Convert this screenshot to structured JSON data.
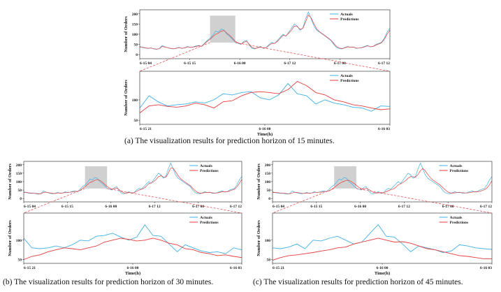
{
  "colors": {
    "actual": "#3fb0e6",
    "prediction": "#e63b3b",
    "highlight": "#c8c8c8",
    "connector": "#e63b3b",
    "axis": "#222222"
  },
  "legend": {
    "actual": "Actuals",
    "prediction": "Predictions"
  },
  "captions": {
    "a": "(a)  The visualization results for prediction horizon of 15 minutes.",
    "b": "(b) The visualization results for prediction horizon of 30 minutes.",
    "c": "(c) The visualization results for prediction horizon of 45 minutes."
  },
  "chart_data": [
    {
      "id": "a-overview",
      "type": "line",
      "ylabel": "Number of Orders",
      "xlabel": "",
      "x_ticks": [
        "6-15 04",
        "6-15 15",
        "6-16 00",
        "6-17 12",
        "6-17 00",
        "6-17 12"
      ],
      "y_ticks": [
        0,
        50,
        100,
        150,
        200
      ],
      "ylim": [
        -20,
        220
      ],
      "highlight_range": [
        25,
        34
      ],
      "series": [
        {
          "name": "Actuals",
          "values": [
            40,
            35,
            32,
            30,
            33,
            28,
            26,
            30,
            45,
            38,
            34,
            30,
            28,
            32,
            36,
            30,
            34,
            40,
            35,
            38,
            42,
            45,
            40,
            55,
            70,
            80,
            95,
            115,
            110,
            125,
            120,
            100,
            90,
            75,
            60,
            55,
            50,
            65,
            70,
            45,
            30,
            28,
            35,
            40,
            30,
            35,
            50,
            60,
            55,
            70,
            85,
            100,
            90,
            110,
            130,
            150,
            140,
            120,
            130,
            175,
            210,
            175,
            140,
            120,
            110,
            100,
            90,
            80,
            70,
            50,
            35,
            30,
            28,
            35,
            40,
            35,
            38,
            30,
            32,
            35,
            40,
            45,
            38,
            40,
            50,
            55,
            60,
            80,
            110,
            130
          ]
        },
        {
          "name": "Predictions",
          "values": [
            38,
            36,
            33,
            31,
            32,
            29,
            27,
            29,
            40,
            37,
            34,
            31,
            29,
            31,
            34,
            31,
            33,
            38,
            36,
            37,
            40,
            43,
            41,
            52,
            65,
            75,
            88,
            100,
            105,
            115,
            118,
            105,
            95,
            80,
            65,
            58,
            52,
            60,
            66,
            50,
            35,
            30,
            33,
            38,
            32,
            34,
            45,
            55,
            55,
            65,
            80,
            95,
            92,
            105,
            120,
            140,
            138,
            125,
            128,
            160,
            195,
            180,
            150,
            125,
            112,
            102,
            92,
            82,
            72,
            55,
            40,
            32,
            30,
            33,
            38,
            36,
            37,
            32,
            32,
            34,
            38,
            43,
            39,
            40,
            47,
            52,
            58,
            75,
            100,
            120
          ]
        }
      ]
    },
    {
      "id": "a-zoom",
      "type": "line",
      "ylabel": "Number of Orders",
      "xlabel": "Time(h)",
      "x_ticks": [
        "6-15 21",
        "6-16 00",
        "6-16 03"
      ],
      "y_ticks": [
        50,
        100
      ],
      "ylim": [
        40,
        170
      ],
      "series": [
        {
          "name": "Actuals",
          "values": [
            80,
            110,
            95,
            85,
            88,
            90,
            95,
            92,
            100,
            115,
            112,
            118,
            120,
            105,
            100,
            112,
            140,
            115,
            110,
            90,
            100,
            92,
            88,
            82,
            80,
            72,
            85,
            84
          ]
        },
        {
          "name": "Predictions",
          "values": [
            68,
            85,
            88,
            84,
            82,
            85,
            92,
            88,
            80,
            95,
            98,
            110,
            118,
            120,
            118,
            115,
            125,
            145,
            135,
            118,
            112,
            100,
            95,
            88,
            85,
            80,
            76,
            78
          ]
        }
      ]
    },
    {
      "id": "b-overview",
      "type": "line",
      "ylabel": "Number of Orders",
      "xlabel": "",
      "x_ticks": [
        "6-15 04",
        "6-15 15",
        "6-16 00",
        "6-17 12",
        "6-17 00",
        "6-17 12"
      ],
      "y_ticks": [
        0,
        50,
        100,
        150,
        200
      ],
      "ylim": [
        -20,
        220
      ],
      "highlight_range": [
        25,
        34
      ],
      "series": [
        {
          "name": "Actuals",
          "values": [
            40,
            35,
            32,
            30,
            33,
            28,
            26,
            30,
            45,
            38,
            34,
            30,
            28,
            32,
            36,
            30,
            34,
            40,
            35,
            38,
            42,
            45,
            40,
            55,
            70,
            80,
            95,
            115,
            110,
            125,
            120,
            100,
            90,
            75,
            60,
            55,
            50,
            65,
            70,
            45,
            30,
            28,
            35,
            40,
            30,
            35,
            50,
            60,
            55,
            70,
            85,
            100,
            90,
            110,
            130,
            150,
            140,
            120,
            130,
            175,
            210,
            175,
            140,
            120,
            110,
            100,
            90,
            80,
            70,
            50,
            35,
            30,
            28,
            35,
            40,
            35,
            38,
            30,
            32,
            35,
            40,
            45,
            38,
            40,
            50,
            55,
            60,
            80,
            110,
            130
          ]
        },
        {
          "name": "Predictions",
          "values": [
            36,
            37,
            34,
            32,
            31,
            30,
            28,
            28,
            36,
            38,
            35,
            32,
            30,
            30,
            33,
            32,
            33,
            36,
            37,
            37,
            39,
            42,
            42,
            48,
            60,
            70,
            82,
            95,
            100,
            108,
            112,
            108,
            98,
            85,
            72,
            62,
            55,
            58,
            62,
            52,
            40,
            33,
            32,
            36,
            34,
            34,
            42,
            50,
            54,
            60,
            72,
            88,
            92,
            100,
            112,
            130,
            135,
            128,
            126,
            150,
            180,
            180,
            158,
            135,
            118,
            106,
            96,
            86,
            76,
            60,
            46,
            36,
            32,
            32,
            36,
            36,
            36,
            34,
            32,
            33,
            36,
            40,
            40,
            40,
            44,
            50,
            55,
            68,
            90,
            112
          ]
        }
      ]
    },
    {
      "id": "b-zoom",
      "type": "line",
      "ylabel": "Number of Orders",
      "xlabel": "Time(h)",
      "x_ticks": [
        "6-15 21",
        "6-16 00",
        "6-16 03"
      ],
      "y_ticks": [
        50,
        100
      ],
      "ylim": [
        40,
        170
      ],
      "series": [
        {
          "name": "Actuals",
          "values": [
            105,
            80,
            78,
            80,
            85,
            80,
            88,
            100,
            98,
            110,
            112,
            118,
            108,
            100,
            108,
            140,
            112,
            110,
            90,
            70,
            88,
            80,
            72,
            68,
            70,
            65,
            80,
            75
          ]
        },
        {
          "name": "Predictions",
          "values": [
            50,
            58,
            62,
            70,
            75,
            80,
            78,
            75,
            80,
            85,
            95,
            100,
            105,
            102,
            98,
            100,
            105,
            100,
            92,
            88,
            78,
            75,
            68,
            65,
            60,
            62,
            58,
            55
          ]
        }
      ]
    },
    {
      "id": "c-overview",
      "type": "line",
      "ylabel": "Number of Orders",
      "xlabel": "",
      "x_ticks": [
        "6-15 04",
        "6-15 15",
        "6-16 00",
        "6-17 12",
        "6-17 00",
        "6-17 12"
      ],
      "y_ticks": [
        0,
        50,
        100,
        150,
        200
      ],
      "ylim": [
        -20,
        220
      ],
      "highlight_range": [
        25,
        34
      ],
      "series": [
        {
          "name": "Actuals",
          "values": [
            40,
            35,
            32,
            30,
            33,
            28,
            26,
            30,
            45,
            38,
            34,
            30,
            28,
            32,
            36,
            30,
            34,
            40,
            35,
            38,
            42,
            45,
            40,
            55,
            70,
            80,
            95,
            115,
            110,
            125,
            120,
            100,
            90,
            75,
            60,
            55,
            50,
            65,
            70,
            45,
            30,
            28,
            35,
            40,
            30,
            35,
            50,
            60,
            55,
            70,
            85,
            100,
            90,
            110,
            130,
            150,
            140,
            120,
            130,
            175,
            210,
            175,
            140,
            120,
            110,
            100,
            90,
            80,
            70,
            50,
            35,
            30,
            28,
            35,
            40,
            35,
            38,
            30,
            32,
            35,
            40,
            45,
            38,
            40,
            50,
            55,
            60,
            80,
            110,
            130
          ]
        },
        {
          "name": "Predictions",
          "values": [
            35,
            36,
            35,
            33,
            32,
            31,
            29,
            28,
            33,
            37,
            36,
            33,
            31,
            30,
            32,
            32,
            33,
            35,
            37,
            37,
            38,
            41,
            42,
            45,
            55,
            65,
            76,
            88,
            96,
            102,
            108,
            108,
            100,
            90,
            78,
            66,
            58,
            56,
            60,
            54,
            44,
            36,
            32,
            34,
            35,
            34,
            40,
            46,
            52,
            56,
            66,
            80,
            88,
            96,
            106,
            120,
            130,
            130,
            126,
            142,
            165,
            178,
            164,
            142,
            124,
            110,
            100,
            90,
            80,
            66,
            52,
            40,
            34,
            32,
            34,
            35,
            35,
            35,
            33,
            33,
            35,
            38,
            40,
            40,
            42,
            47,
            52,
            62,
            82,
            105
          ]
        }
      ]
    },
    {
      "id": "c-zoom",
      "type": "line",
      "ylabel": "Number of Orders",
      "xlabel": "Time(h)",
      "x_ticks": [
        "6-15 21",
        "6-16 00",
        "6-16 03"
      ],
      "y_ticks": [
        50,
        100
      ],
      "ylim": [
        40,
        170
      ],
      "series": [
        {
          "name": "Actuals",
          "values": [
            80,
            78,
            82,
            90,
            78,
            100,
            98,
            105,
            110,
            100,
            90,
            95,
            118,
            140,
            110,
            108,
            90,
            70,
            85,
            80,
            75,
            68,
            72,
            88,
            85,
            80,
            78,
            76
          ]
        },
        {
          "name": "Predictions",
          "values": [
            48,
            55,
            60,
            62,
            65,
            68,
            72,
            75,
            80,
            82,
            90,
            95,
            100,
            105,
            100,
            95,
            96,
            92,
            85,
            78,
            75,
            70,
            65,
            60,
            58,
            55,
            52,
            52
          ]
        }
      ]
    }
  ]
}
